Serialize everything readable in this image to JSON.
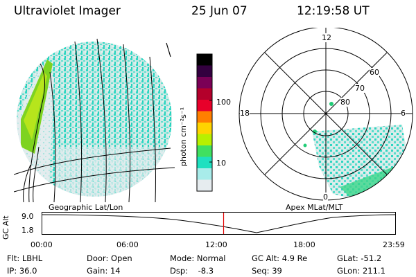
{
  "header": {
    "instrument": "Ultraviolet Imager",
    "date": "25 Jun 07",
    "time": "12:19:58 UT"
  },
  "colorbar": {
    "label": "photon cm⁻²s⁻¹",
    "ticks": [
      "100",
      "10"
    ],
    "colors": [
      "#000000",
      "#33003f",
      "#7a0056",
      "#b4002b",
      "#e8002a",
      "#ff7f00",
      "#ffd400",
      "#b8f000",
      "#40e060",
      "#1fe0c0",
      "#a8ecea",
      "#e6ecef"
    ]
  },
  "left_panel": {
    "label": "Geographic Lat/Lon"
  },
  "right_panel": {
    "label": "Apex  MLat/MLT",
    "mlt_labels": {
      "top": "12",
      "left": "18",
      "right": "6",
      "bottom": "0"
    },
    "lat_labels": [
      "60",
      "70",
      "80"
    ]
  },
  "altitude_plot": {
    "ylabel": "GC Alt",
    "yticks": [
      "9.0",
      "1.8"
    ],
    "xticks": [
      "00:00",
      "06:00",
      "12:00",
      "18:00",
      "23:59"
    ],
    "marker_color": "#e00000",
    "marker_time_hours": 12.33
  },
  "info": {
    "flt": "Flt: LBHL",
    "ip": "IP: 36.0",
    "door": "Door: Open",
    "gain": "Gain: 14",
    "mode": "Mode: Normal",
    "dsp": "Dsp:    -8.3",
    "gcalt": "GC Alt: 4.9 Re",
    "seq": "Seq: 39",
    "glat": "GLat: -51.2",
    "glon": "GLon: 211.1"
  }
}
